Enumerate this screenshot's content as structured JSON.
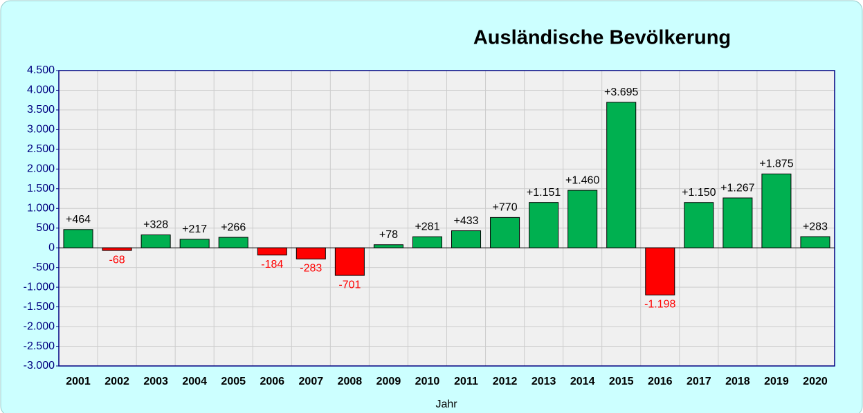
{
  "chart_data": {
    "type": "bar",
    "title": "Ausländische Bevölkerung",
    "x_label": "Jahr",
    "categories": [
      "2001",
      "2002",
      "2003",
      "2004",
      "2005",
      "2006",
      "2007",
      "2008",
      "2009",
      "2010",
      "2011",
      "2012",
      "2013",
      "2014",
      "2015",
      "2016",
      "2017",
      "2018",
      "2019",
      "2020"
    ],
    "values": [
      464,
      -68,
      328,
      217,
      266,
      -184,
      -283,
      -701,
      78,
      281,
      433,
      770,
      1151,
      1460,
      3695,
      -1198,
      1150,
      1267,
      1875,
      283
    ],
    "value_labels": [
      "+464",
      "-68",
      "+328",
      "+217",
      "+266",
      "-184",
      "-283",
      "-701",
      "+78",
      "+281",
      "+433",
      "+770",
      "+1.151",
      "+1.460",
      "+3.695",
      "-1.198",
      "+1.150",
      "+1.267",
      "+1.875",
      "+283"
    ],
    "positive_color": "#00b050",
    "negative_color": "#ff0000",
    "ylim": [
      -3000,
      4500
    ],
    "yticks": [
      {
        "value": 4500,
        "label": "4.500"
      },
      {
        "value": 4000,
        "label": "4.000"
      },
      {
        "value": 3500,
        "label": "3.500"
      },
      {
        "value": 3000,
        "label": "3.000"
      },
      {
        "value": 2500,
        "label": "2.500"
      },
      {
        "value": 2000,
        "label": "2.000"
      },
      {
        "value": 1500,
        "label": "1.500"
      },
      {
        "value": 1000,
        "label": "1.000"
      },
      500,
      0,
      -500,
      {
        "value": -1000,
        "label": "-1.000"
      },
      {
        "value": -1500,
        "label": "-1.500"
      },
      {
        "value": -2000,
        "label": "-2.000"
      },
      {
        "value": -2500,
        "label": "-2.500"
      },
      {
        "value": -3000,
        "label": "-3.000"
      }
    ],
    "grid": true
  }
}
